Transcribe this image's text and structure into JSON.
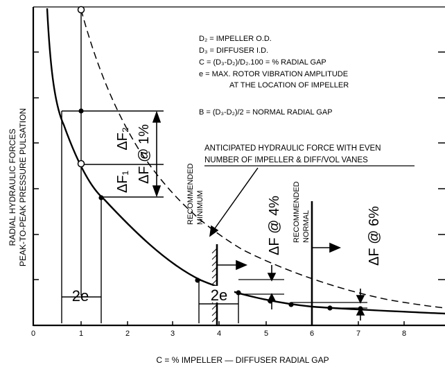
{
  "y_axis_label_line1": "RADIAL HYDRAULIC FORCES",
  "y_axis_label_line2": "PEAK-TO-PEAK PRESSURE PULSATION",
  "x_axis_label": "C = % IMPELLER — DIFFUSER RADIAL GAP",
  "x_ticks": [
    "0",
    "1",
    "2",
    "3",
    "4",
    "5",
    "6",
    "7",
    "8"
  ],
  "legend": {
    "d2": "D₂  =  IMPELLER O.D.",
    "d3": "D₃  =  DIFFUSER I.D.",
    "c": "C    =  (D₃-D₂)/D₂.100 = % RADIAL GAP",
    "e1": "e     =  MAX. ROTOR VIBRATION AMPLITUDE",
    "e2": "AT THE LOCATION OF IMPELLER",
    "b": "B    =  (D₃-D₂)/2 = NORMAL RADIAL GAP"
  },
  "anticipated_line1": "ANTICIPATED HYDRAULIC FORCE WITH EVEN",
  "anticipated_line2": "NUMBER OF IMPELLER & DIFF/VOL VANES",
  "recommended_minimum_1": "RECOMMENDED",
  "recommended_minimum_2": "MINIMUM",
  "recommended_normal_1": "RECOMMENDED",
  "recommended_normal_2": "NORMAL",
  "delta_f2": "ΔF₂",
  "delta_f1": "ΔF₁",
  "delta_f_1pct": "ΔF @ 1%",
  "delta_f_4pct": "ΔF @ 4%",
  "delta_f_6pct": "ΔF @ 6%",
  "two_e_left": "2e",
  "two_e_right": "2e"
}
